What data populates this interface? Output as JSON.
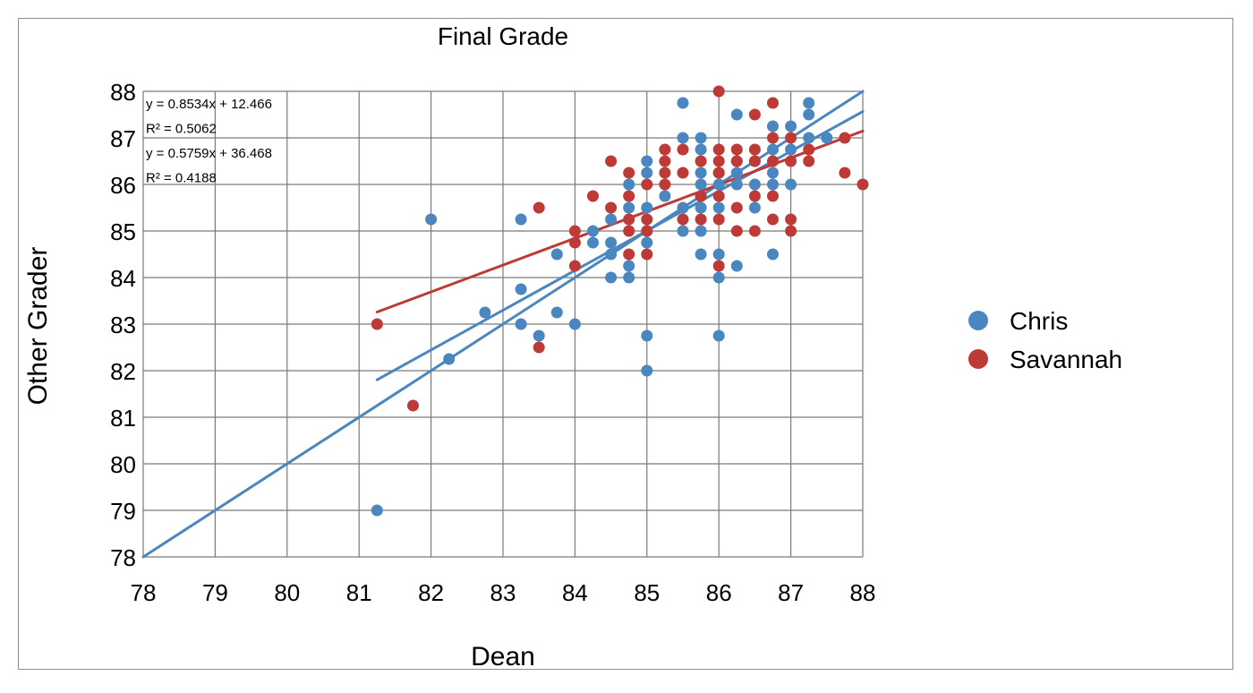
{
  "chart_data": {
    "type": "scatter",
    "title": "Final Grade",
    "xlabel": "Dean",
    "ylabel": "Other Grader",
    "xlim": [
      78,
      88
    ],
    "ylim": [
      78,
      88
    ],
    "xticks": [
      "78",
      "79",
      "80",
      "81",
      "82",
      "83",
      "84",
      "85",
      "86",
      "87",
      "88"
    ],
    "yticks": [
      "78",
      "79",
      "80",
      "81",
      "82",
      "83",
      "84",
      "85",
      "86",
      "87",
      "88"
    ],
    "grid": true,
    "legend_position": "right",
    "colors": {
      "Chris": "#4a86c0",
      "Savannah": "#bd3a36"
    },
    "annotations": [
      "y = 0.8534x + 12.466",
      "R² = 0.5062",
      "y = 0.5759x + 36.468",
      "R² = 0.4188"
    ],
    "trendlines": [
      {
        "series": "Chris",
        "slope": 1.0,
        "intercept": 0.0,
        "x_range": [
          78,
          88
        ]
      },
      {
        "series": "Chris",
        "slope": 0.8534,
        "intercept": 12.466,
        "x_range": [
          81.25,
          88
        ]
      },
      {
        "series": "Savannah",
        "slope": 0.5759,
        "intercept": 36.468,
        "x_range": [
          81.25,
          88
        ]
      }
    ],
    "series": [
      {
        "name": "Chris",
        "points": [
          [
            81.25,
            79
          ],
          [
            82,
            85.25
          ],
          [
            82.25,
            82.25
          ],
          [
            82.75,
            83.25
          ],
          [
            83.25,
            85.25
          ],
          [
            83.25,
            83.75
          ],
          [
            83.25,
            83
          ],
          [
            83.5,
            82.75
          ],
          [
            83.75,
            84.5
          ],
          [
            83.75,
            83.25
          ],
          [
            84,
            83
          ],
          [
            84.25,
            85
          ],
          [
            84.25,
            84.75
          ],
          [
            84.5,
            85.25
          ],
          [
            84.5,
            84.75
          ],
          [
            84.5,
            84.5
          ],
          [
            84.5,
            84
          ],
          [
            84.75,
            86
          ],
          [
            84.75,
            85.5
          ],
          [
            84.75,
            84.25
          ],
          [
            84.75,
            84
          ],
          [
            85,
            86.5
          ],
          [
            85,
            86.25
          ],
          [
            85,
            85.5
          ],
          [
            85,
            85
          ],
          [
            85,
            84.75
          ],
          [
            85,
            82.75
          ],
          [
            85,
            82
          ],
          [
            85.25,
            85.75
          ],
          [
            85.5,
            87.75
          ],
          [
            85.5,
            87
          ],
          [
            85.5,
            85.5
          ],
          [
            85.5,
            85
          ],
          [
            85.75,
            87
          ],
          [
            85.75,
            86.75
          ],
          [
            85.75,
            86.25
          ],
          [
            85.75,
            86
          ],
          [
            85.75,
            85.75
          ],
          [
            85.75,
            85.5
          ],
          [
            85.75,
            85
          ],
          [
            85.75,
            84.5
          ],
          [
            86,
            86.25
          ],
          [
            86,
            86
          ],
          [
            86,
            85.5
          ],
          [
            86,
            84.5
          ],
          [
            86,
            84
          ],
          [
            86,
            82.75
          ],
          [
            86.25,
            87.5
          ],
          [
            86.25,
            86.5
          ],
          [
            86.25,
            86.25
          ],
          [
            86.25,
            86
          ],
          [
            86.25,
            84.25
          ],
          [
            86.5,
            86.5
          ],
          [
            86.5,
            86
          ],
          [
            86.5,
            85.5
          ],
          [
            86.75,
            87.25
          ],
          [
            86.75,
            86.75
          ],
          [
            86.75,
            86.25
          ],
          [
            86.75,
            86
          ],
          [
            86.75,
            84.5
          ],
          [
            87,
            87.25
          ],
          [
            87,
            86.75
          ],
          [
            87,
            86
          ],
          [
            87.25,
            87.75
          ],
          [
            87.25,
            87.5
          ],
          [
            87.25,
            87
          ],
          [
            87.5,
            87
          ]
        ]
      },
      {
        "name": "Savannah",
        "points": [
          [
            81.25,
            83
          ],
          [
            81.75,
            81.25
          ],
          [
            83.5,
            85.5
          ],
          [
            83.5,
            82.5
          ],
          [
            84,
            85
          ],
          [
            84,
            84.75
          ],
          [
            84,
            84.25
          ],
          [
            84.25,
            85.75
          ],
          [
            84.5,
            86.5
          ],
          [
            84.5,
            85.5
          ],
          [
            84.75,
            86.25
          ],
          [
            84.75,
            85.75
          ],
          [
            84.75,
            85.25
          ],
          [
            84.75,
            85
          ],
          [
            84.75,
            84.5
          ],
          [
            85,
            86
          ],
          [
            85,
            85.25
          ],
          [
            85,
            85
          ],
          [
            85,
            84.5
          ],
          [
            85.25,
            86.75
          ],
          [
            85.25,
            86.5
          ],
          [
            85.25,
            86.25
          ],
          [
            85.25,
            86
          ],
          [
            85.5,
            86.75
          ],
          [
            85.5,
            86.25
          ],
          [
            85.5,
            85.25
          ],
          [
            85.75,
            86.5
          ],
          [
            85.75,
            85.75
          ],
          [
            85.75,
            85.25
          ],
          [
            86,
            88
          ],
          [
            86,
            86.75
          ],
          [
            86,
            86.5
          ],
          [
            86,
            86.25
          ],
          [
            86,
            85.75
          ],
          [
            86,
            85.25
          ],
          [
            86,
            84.25
          ],
          [
            86.25,
            86.75
          ],
          [
            86.25,
            86.5
          ],
          [
            86.25,
            85.5
          ],
          [
            86.25,
            85
          ],
          [
            86.5,
            87.5
          ],
          [
            86.5,
            86.75
          ],
          [
            86.5,
            86.5
          ],
          [
            86.5,
            85.75
          ],
          [
            86.5,
            85
          ],
          [
            86.75,
            87.75
          ],
          [
            86.75,
            87
          ],
          [
            86.75,
            86.5
          ],
          [
            86.75,
            85.75
          ],
          [
            86.75,
            85.25
          ],
          [
            87,
            87
          ],
          [
            87,
            86.5
          ],
          [
            87,
            85.25
          ],
          [
            87,
            85
          ],
          [
            87.25,
            86.75
          ],
          [
            87.25,
            86.5
          ],
          [
            87.75,
            87
          ],
          [
            87.75,
            86.25
          ],
          [
            88,
            86
          ]
        ]
      }
    ]
  }
}
